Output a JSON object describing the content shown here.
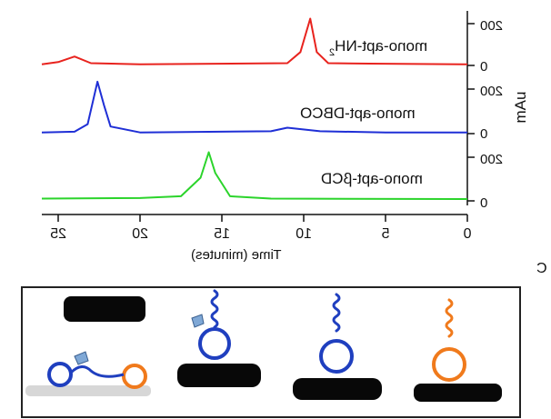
{
  "figure": {
    "panel_label": "C",
    "y_unit_label": "mAu",
    "x_axis_title": "Time (minutes)",
    "x_ticks": [
      "25",
      "20",
      "15",
      "10",
      "5",
      "0"
    ],
    "traces": [
      {
        "name": "mono-apt-NH",
        "subscript": "2",
        "color": "#e8231e",
        "y_ticks": [
          "200",
          "0"
        ]
      },
      {
        "name": "mono-apt-DBCO",
        "subscript": "",
        "color": "#1f2fd6",
        "y_ticks": [
          "200",
          "0"
        ]
      },
      {
        "name": "mono-apt-βCD",
        "subscript": "",
        "color": "#2bd42b",
        "y_ticks": [
          "200",
          "0"
        ]
      }
    ]
  },
  "schematic": {
    "colors": {
      "blue_aptamer": "#1f3fbf",
      "orange_aptamer": "#f07a1c",
      "cap_icon": "#7fa8d6"
    }
  },
  "chart_data": {
    "type": "line",
    "title": "",
    "xlabel": "Time (minutes)",
    "ylabel": "mAu",
    "x_reversed": true,
    "xlim": [
      0,
      26
    ],
    "ylim": [
      0,
      250
    ],
    "grid": false,
    "series": [
      {
        "name": "mono-apt-NH2",
        "x": [
          0,
          6,
          8.5,
          9.2,
          9.6,
          10.2,
          11,
          20,
          23,
          24,
          25,
          26
        ],
        "y": [
          5,
          8,
          10,
          60,
          210,
          60,
          10,
          5,
          10,
          40,
          15,
          5
        ]
      },
      {
        "name": "mono-apt-DBCO",
        "x": [
          0,
          5,
          9,
          11,
          12,
          20,
          21.8,
          22.2,
          22.6,
          23.2,
          24,
          26
        ],
        "y": [
          5,
          5,
          10,
          25,
          10,
          5,
          30,
          120,
          220,
          40,
          8,
          5
        ]
      },
      {
        "name": "mono-apt-βCD",
        "x": [
          0,
          12,
          14.5,
          15.4,
          15.8,
          16.3,
          17.5,
          20,
          26
        ],
        "y": [
          8,
          10,
          20,
          120,
          210,
          100,
          20,
          12,
          10
        ]
      }
    ]
  }
}
